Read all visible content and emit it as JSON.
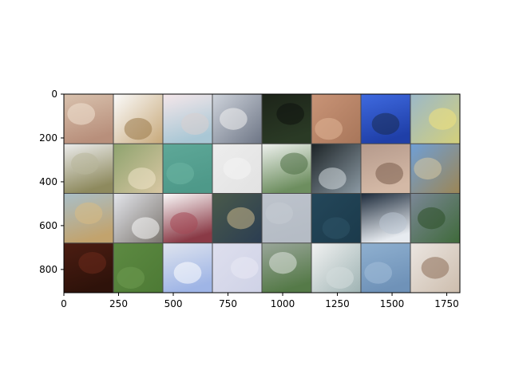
{
  "chart_data": {
    "type": "image-grid",
    "title": "",
    "xlabel": "",
    "ylabel": "",
    "xlim": [
      0,
      1810
    ],
    "ylim": [
      906,
      0
    ],
    "x_ticks": [
      0,
      250,
      500,
      750,
      1000,
      1250,
      1500,
      1750
    ],
    "y_ticks": [
      0,
      200,
      400,
      600,
      800
    ],
    "grid": false,
    "grid_rows": 4,
    "grid_cols": 8,
    "tiles": [
      {
        "row": 0,
        "col": 0,
        "top": "#d9c2ae",
        "bottom": "#b88f7b",
        "accent": "#f0e2d2"
      },
      {
        "row": 0,
        "col": 1,
        "top": "#fbfbfb",
        "bottom": "#c7a879",
        "accent": "#9b7a4b"
      },
      {
        "row": 0,
        "col": 2,
        "top": "#f5e7ea",
        "bottom": "#a9c7d5",
        "accent": "#d9d0cf"
      },
      {
        "row": 0,
        "col": 3,
        "top": "#cfd4dc",
        "bottom": "#6d7585",
        "accent": "#f0f0f0"
      },
      {
        "row": 0,
        "col": 4,
        "top": "#1d2419",
        "bottom": "#2a3a25",
        "accent": "#0f130e"
      },
      {
        "row": 0,
        "col": 5,
        "top": "#c99477",
        "bottom": "#a8765a",
        "accent": "#e0b596"
      },
      {
        "row": 0,
        "col": 6,
        "top": "#3f6ae0",
        "bottom": "#1f3fa8",
        "accent": "#1a2b52"
      },
      {
        "row": 0,
        "col": 7,
        "top": "#9bb8c9",
        "bottom": "#d4d07a",
        "accent": "#f1e27d"
      },
      {
        "row": 1,
        "col": 0,
        "top": "#ececec",
        "bottom": "#8e8a5e",
        "accent": "#b8b79b"
      },
      {
        "row": 1,
        "col": 1,
        "top": "#8ea36e",
        "bottom": "#d9c7a3",
        "accent": "#efe3c8"
      },
      {
        "row": 1,
        "col": 2,
        "top": "#5ea898",
        "bottom": "#4e9989",
        "accent": "#6bb4a3"
      },
      {
        "row": 1,
        "col": 3,
        "top": "#ededed",
        "bottom": "#e2e2e2",
        "accent": "#f4f4f4"
      },
      {
        "row": 1,
        "col": 4,
        "top": "#eef1ee",
        "bottom": "#6d8e5f",
        "accent": "#4f6f45"
      },
      {
        "row": 1,
        "col": 5,
        "top": "#1c2326",
        "bottom": "#8c9aa4",
        "accent": "#d1d8dc"
      },
      {
        "row": 1,
        "col": 6,
        "top": "#b59a8c",
        "bottom": "#d4b9a6",
        "accent": "#7a5c4d"
      },
      {
        "row": 1,
        "col": 7,
        "top": "#6f9fd6",
        "bottom": "#9c8655",
        "accent": "#d7c8a3"
      },
      {
        "row": 2,
        "col": 0,
        "top": "#a9bfc8",
        "bottom": "#c2a36d",
        "accent": "#d8bb83"
      },
      {
        "row": 2,
        "col": 1,
        "top": "#e4e6ec",
        "bottom": "#7a746d",
        "accent": "#fafafa"
      },
      {
        "row": 2,
        "col": 2,
        "top": "#fbfbfb",
        "bottom": "#8a3a46",
        "accent": "#a54855"
      },
      {
        "row": 2,
        "col": 3,
        "top": "#4a5a4a",
        "bottom": "#2b3d52",
        "accent": "#c8b78a"
      },
      {
        "row": 2,
        "col": 4,
        "top": "#bdc3cc",
        "bottom": "#b5bcc5",
        "accent": "#c5cad2"
      },
      {
        "row": 2,
        "col": 5,
        "top": "#24475a",
        "bottom": "#1b3a4b",
        "accent": "#2e5367"
      },
      {
        "row": 2,
        "col": 6,
        "top": "#1c2a3a",
        "bottom": "#e7ebf0",
        "accent": "#b9c4d2"
      },
      {
        "row": 2,
        "col": 7,
        "top": "#7b8796",
        "bottom": "#3f6a3a",
        "accent": "#2d5128"
      },
      {
        "row": 3,
        "col": 0,
        "top": "#4c1d12",
        "bottom": "#2e120a",
        "accent": "#6b2a1c"
      },
      {
        "row": 3,
        "col": 1,
        "top": "#5d8a42",
        "bottom": "#4d7a35",
        "accent": "#6e9a50"
      },
      {
        "row": 3,
        "col": 2,
        "top": "#dfe4ee",
        "bottom": "#9fb5e6",
        "accent": "#ffffff"
      },
      {
        "row": 3,
        "col": 3,
        "top": "#dedfee",
        "bottom": "#cfd2e6",
        "accent": "#e9e9f4"
      },
      {
        "row": 3,
        "col": 4,
        "top": "#9aa69a",
        "bottom": "#557a48",
        "accent": "#dfe3df"
      },
      {
        "row": 3,
        "col": 5,
        "top": "#f2f2f2",
        "bottom": "#9eb3b3",
        "accent": "#d4dcdc"
      },
      {
        "row": 3,
        "col": 6,
        "top": "#8fb0d0",
        "bottom": "#6f92b8",
        "accent": "#a2bdd8"
      },
      {
        "row": 3,
        "col": 7,
        "top": "#ebe6e1",
        "bottom": "#cdbdad",
        "accent": "#8c6e58"
      }
    ]
  }
}
